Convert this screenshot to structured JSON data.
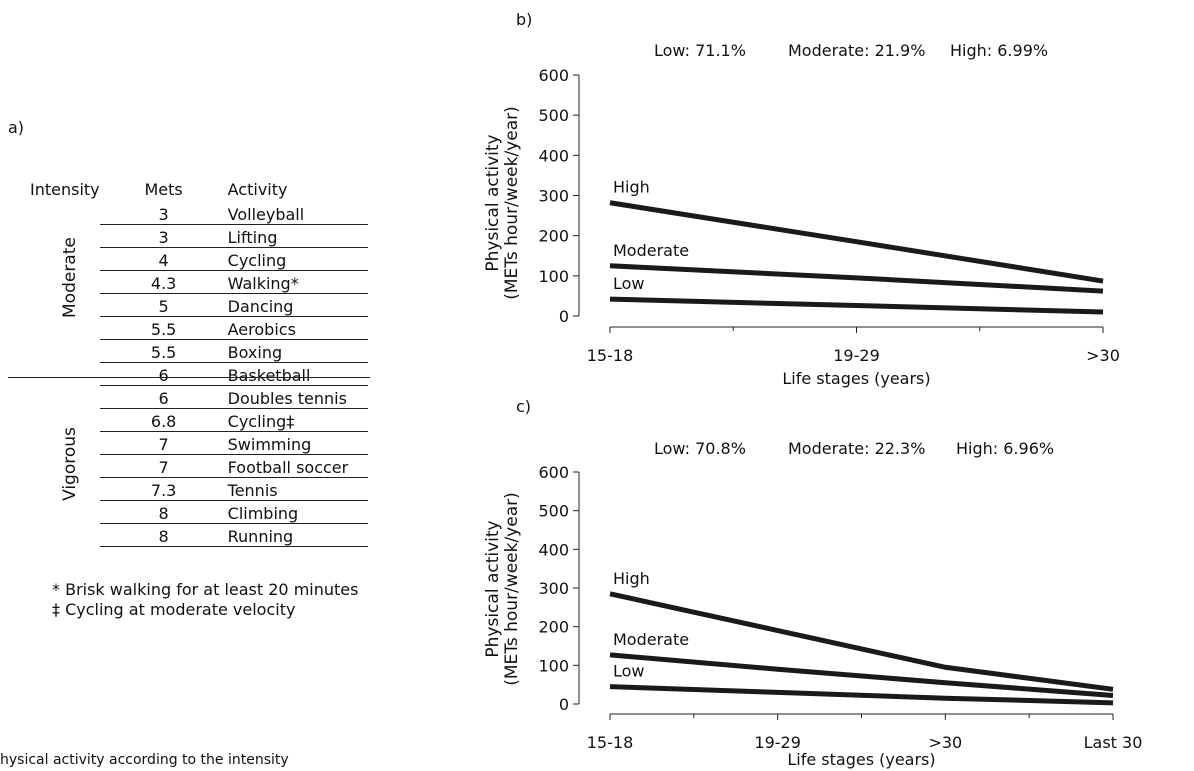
{
  "panel_a": {
    "label": "a)",
    "headers": {
      "intensity": "Intensity",
      "mets": "Mets",
      "activity": "Activity"
    },
    "groups": {
      "moderate": "Moderate",
      "vigorous": "Vigorous"
    },
    "rows": [
      {
        "mets": "3",
        "activity": "Volleyball",
        "group": "moderate"
      },
      {
        "mets": "3",
        "activity": "Lifting",
        "group": "moderate"
      },
      {
        "mets": "4",
        "activity": "Cycling",
        "group": "moderate"
      },
      {
        "mets": "4.3",
        "activity": "Walking*",
        "group": "moderate"
      },
      {
        "mets": "5",
        "activity": "Dancing",
        "group": "moderate"
      },
      {
        "mets": "5.5",
        "activity": "Aerobics",
        "group": "moderate"
      },
      {
        "mets": "5.5",
        "activity": "Boxing",
        "group": "moderate"
      },
      {
        "mets": "6",
        "activity": "Basketball",
        "group": "vigorous"
      },
      {
        "mets": "6",
        "activity": "Doubles tennis",
        "group": "vigorous"
      },
      {
        "mets": "6.8",
        "activity": "Cycling‡",
        "group": "vigorous"
      },
      {
        "mets": "7",
        "activity": "Swimming",
        "group": "vigorous"
      },
      {
        "mets": "7",
        "activity": "Football soccer",
        "group": "vigorous"
      },
      {
        "mets": "7.3",
        "activity": "Tennis",
        "group": "vigorous"
      },
      {
        "mets": "8",
        "activity": "Climbing",
        "group": "vigorous"
      },
      {
        "mets": "8",
        "activity": "Running",
        "group": "vigorous"
      }
    ],
    "footnotes": [
      "* Brisk walking for at least 20 minutes",
      "‡ Cycling at moderate velocity"
    ]
  },
  "caption": "hysical activity according to the intensity",
  "chart_data": [
    {
      "panel_label": "b)",
      "type": "line",
      "header": [
        "Low: 71.1%",
        "Moderate: 21.9%",
        "High: 6.99%"
      ],
      "xlabel": "Life stages (years)",
      "ylabel": [
        "Physical activity",
        "(METs hour/week/year)"
      ],
      "categories": [
        "15-18",
        "19-29",
        ">30"
      ],
      "ylim": [
        0,
        600
      ],
      "yticks": [
        0,
        100,
        200,
        300,
        400,
        500,
        600
      ],
      "series": [
        {
          "name": "High",
          "values": [
            282,
            185,
            87
          ]
        },
        {
          "name": "Moderate",
          "values": [
            125,
            95,
            62
          ]
        },
        {
          "name": "Low",
          "values": [
            42,
            26,
            10
          ]
        }
      ]
    },
    {
      "panel_label": "c)",
      "type": "line",
      "header": [
        "Low: 70.8%",
        "Moderate: 22.3%",
        "High: 6.96%"
      ],
      "xlabel": "Life stages (years)",
      "ylabel": [
        "Physical activity",
        "(METs hour/week/year)"
      ],
      "categories": [
        "15-18",
        "19-29",
        ">30",
        "Last 30"
      ],
      "ylim": [
        0,
        600
      ],
      "yticks": [
        0,
        100,
        200,
        300,
        400,
        500,
        600
      ],
      "series": [
        {
          "name": "High",
          "values": [
            285,
            190,
            95,
            38
          ]
        },
        {
          "name": "Moderate",
          "values": [
            127,
            90,
            55,
            22
          ]
        },
        {
          "name": "Low",
          "values": [
            45,
            30,
            15,
            3
          ]
        }
      ]
    }
  ]
}
